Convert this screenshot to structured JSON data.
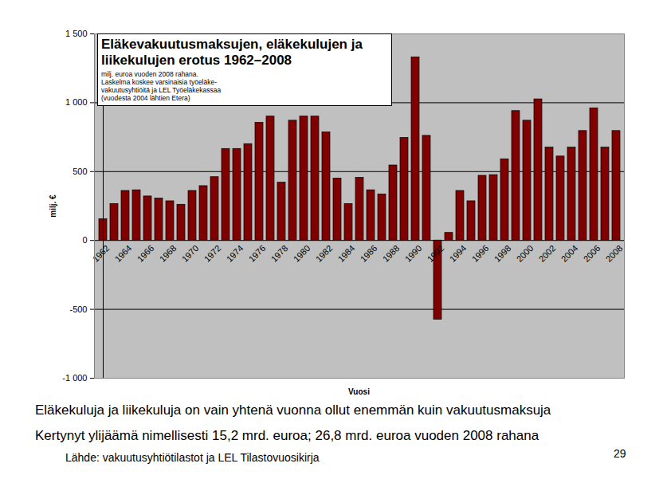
{
  "chart_data": {
    "type": "bar",
    "title": "Eläkevakuutusmaksujen, eläkekulujen ja liikekulujen erotus 1962–2008",
    "subtitle": [
      "milj. euroa vuoden 2008 rahana.",
      "Laskelma koskee varsinaisia työeläke-",
      "vakuutusyhtiöitä ja LEL Työeläkekassaa",
      "(vuodesta 2004 lähtien Etera)"
    ],
    "x_label": "Vuosi",
    "y_label": "milj. €",
    "categories": [
      "1962",
      null,
      "1964",
      null,
      "1966",
      null,
      "1968",
      null,
      "1970",
      null,
      "1972",
      null,
      "1974",
      null,
      "1976",
      null,
      "1978",
      null,
      "1980",
      null,
      "1982",
      null,
      "1984",
      null,
      "1986",
      null,
      "1988",
      null,
      "1990",
      null,
      "1992",
      null,
      "1994",
      null,
      "1996",
      null,
      "1998",
      null,
      "2000",
      null,
      "2002",
      null,
      "2004",
      null,
      "2006",
      null,
      "2008"
    ],
    "values": [
      155,
      265,
      360,
      365,
      320,
      305,
      285,
      260,
      360,
      395,
      460,
      665,
      665,
      700,
      855,
      900,
      420,
      870,
      900,
      900,
      785,
      450,
      265,
      455,
      365,
      335,
      545,
      745,
      1330,
      760,
      -575,
      55,
      360,
      285,
      470,
      475,
      590,
      940,
      870,
      1025,
      675,
      610,
      675,
      795,
      960,
      675,
      795
    ],
    "color": "#800000",
    "ylim": [
      -1000,
      1500
    ],
    "yticks": [
      {
        "value": -1000,
        "label": "-1 000"
      },
      -500,
      0,
      500,
      {
        "value": 1000,
        "label": "1 000"
      },
      {
        "value": 1500,
        "label": "1 500"
      }
    ],
    "grid": true,
    "annotations": [
      "Eläkekuluja ja liikekuluja on vain yhtenä vuonna ollut enemmän kuin vakuutusmaksuja",
      "Kertynyt ylijäämä nimellisesti 15,2 mrd. euroa; 26,8 mrd. euroa vuoden 2008 rahana"
    ],
    "source": "Lähde: vakuutusyhtiötilastot ja LEL Tilastovuosikirja",
    "page_number": "29"
  }
}
